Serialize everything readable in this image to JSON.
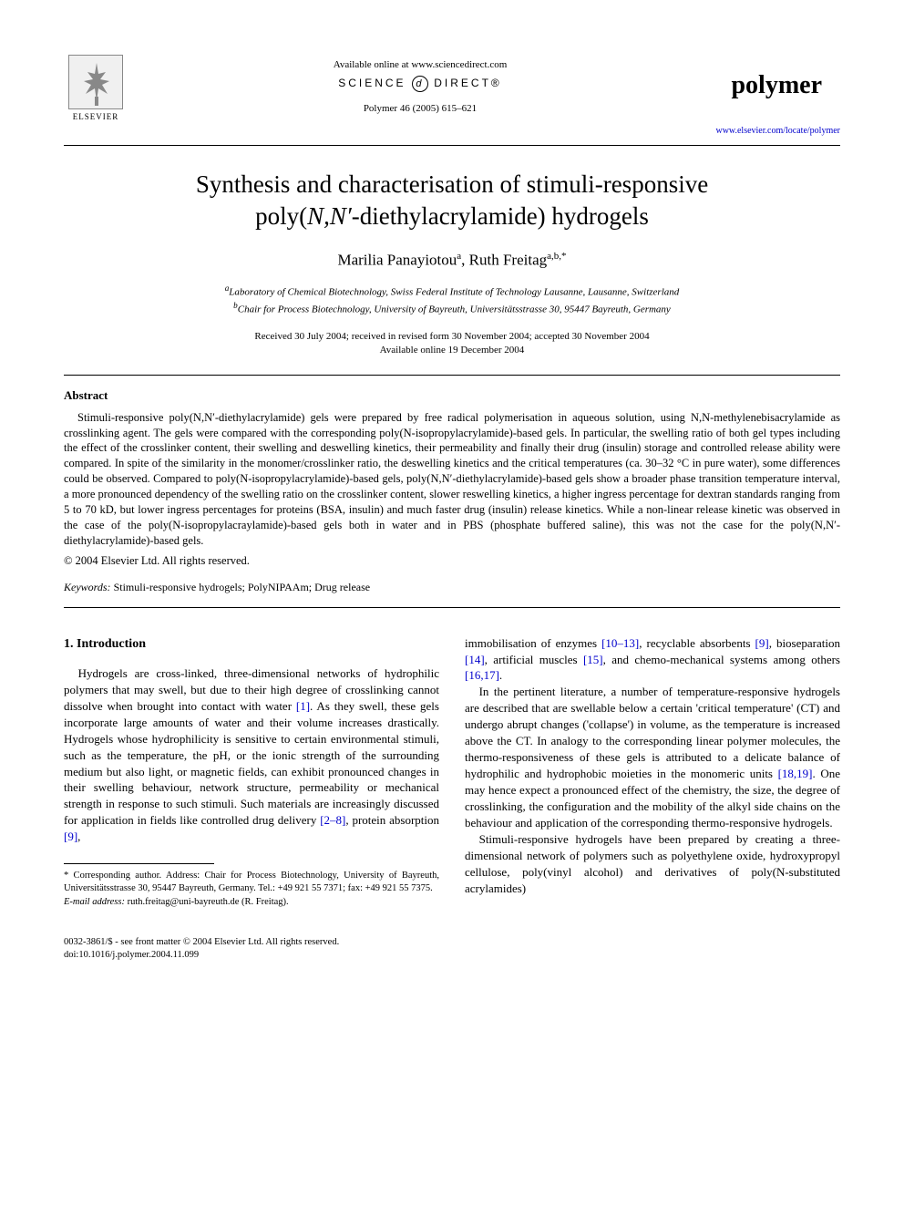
{
  "header": {
    "available_online": "Available online at www.sciencedirect.com",
    "sciencedirect_left": "SCIENCE",
    "sciencedirect_right": "DIRECT®",
    "journal_ref": "Polymer 46 (2005) 615–621",
    "elsevier_label": "ELSEVIER",
    "polymer_label": "polymer",
    "journal_link": "www.elsevier.com/locate/polymer"
  },
  "title_line1": "Synthesis and characterisation of stimuli-responsive",
  "title_line2_prefix": "poly(",
  "title_line2_ital": "N,N′",
  "title_line2_suffix": "-diethylacrylamide) hydrogels",
  "authors": {
    "a1_name": "Marilia Panayiotou",
    "a1_sup": "a",
    "a2_name": "Ruth Freitag",
    "a2_sup": "a,b,*"
  },
  "affiliations": {
    "a": "Laboratory of Chemical Biotechnology, Swiss Federal Institute of Technology Lausanne, Lausanne, Switzerland",
    "b": "Chair for Process Biotechnology, University of Bayreuth, Universitätsstrasse 30, 95447 Bayreuth, Germany"
  },
  "dates": {
    "line1": "Received 30 July 2004; received in revised form 30 November 2004; accepted 30 November 2004",
    "line2": "Available online 19 December 2004"
  },
  "abstract": {
    "heading": "Abstract",
    "text": "Stimuli-responsive poly(N,N′-diethylacrylamide) gels were prepared by free radical polymerisation in aqueous solution, using N,N-methylenebisacrylamide as crosslinking agent. The gels were compared with the corresponding poly(N-isopropylacrylamide)-based gels. In particular, the swelling ratio of both gel types including the effect of the crosslinker content, their swelling and deswelling kinetics, their permeability and finally their drug (insulin) storage and controlled release ability were compared. In spite of the similarity in the monomer/crosslinker ratio, the deswelling kinetics and the critical temperatures (ca. 30–32 °C in pure water), some differences could be observed. Compared to poly(N-isopropylacrylamide)-based gels, poly(N,N′-diethylacrylamide)-based gels show a broader phase transition temperature interval, a more pronounced dependency of the swelling ratio on the crosslinker content, slower reswelling kinetics, a higher ingress percentage for dextran standards ranging from 5 to 70 kD, but lower ingress percentages for proteins (BSA, insulin) and much faster drug (insulin) release kinetics. While a non-linear release kinetic was observed in the case of the poly(N-isopropylacraylamide)-based gels both in water and in PBS (phosphate buffered saline), this was not the case for the poly(N,N′-diethylacrylamide)-based gels.",
    "copyright": "© 2004 Elsevier Ltd. All rights reserved."
  },
  "keywords": {
    "label": "Keywords:",
    "text": " Stimuli-responsive hydrogels; PolyNIPAAm; Drug release"
  },
  "body": {
    "intro_heading": "1. Introduction",
    "col1_p1": "Hydrogels are cross-linked, three-dimensional networks of hydrophilic polymers that may swell, but due to their high degree of crosslinking cannot dissolve when brought into contact with water [1]. As they swell, these gels incorporate large amounts of water and their volume increases drastically. Hydrogels whose hydrophilicity is sensitive to certain environmental stimuli, such as the temperature, the pH, or the ionic strength of the surrounding medium but also light, or magnetic fields, can exhibit pronounced changes in their swelling behaviour, network structure, permeability or mechanical strength in response to such stimuli. Such materials are increasingly discussed for application in fields like controlled drug delivery [2–8], protein absorption [9],",
    "col2_p1": "immobilisation of enzymes [10–13], recyclable absorbents [9], bioseparation [14], artificial muscles [15], and chemo-mechanical systems among others [16,17].",
    "col2_p2": "In the pertinent literature, a number of temperature-responsive hydrogels are described that are swellable below a certain 'critical temperature' (CT) and undergo abrupt changes ('collapse') in volume, as the temperature is increased above the CT. In analogy to the corresponding linear polymer molecules, the thermo-responsiveness of these gels is attributed to a delicate balance of hydrophilic and hydrophobic moieties in the monomeric units [18,19]. One may hence expect a pronounced effect of the chemistry, the size, the degree of crosslinking, the configuration and the mobility of the alkyl side chains on the behaviour and application of the corresponding thermo-responsive hydrogels.",
    "col2_p3": "Stimuli-responsive hydrogels have been prepared by creating a three-dimensional network of polymers such as polyethylene oxide, hydroxypropyl cellulose, poly(vinyl alcohol) and derivatives of poly(N-substituted acrylamides)"
  },
  "footnote": {
    "corr": "* Corresponding author. Address: Chair for Process Biotechnology, University of Bayreuth, Universitätsstrasse 30, 95447 Bayreuth, Germany. Tel.: +49 921 55 7371; fax: +49 921 55 7375.",
    "email_label": "E-mail address:",
    "email": " ruth.freitag@uni-bayreuth.de (R. Freitag)."
  },
  "bottom": {
    "issn": "0032-3861/$ - see front matter © 2004 Elsevier Ltd. All rights reserved.",
    "doi": "doi:10.1016/j.polymer.2004.11.099"
  },
  "colors": {
    "link": "#0000cc",
    "text": "#000000",
    "bg": "#ffffff"
  }
}
